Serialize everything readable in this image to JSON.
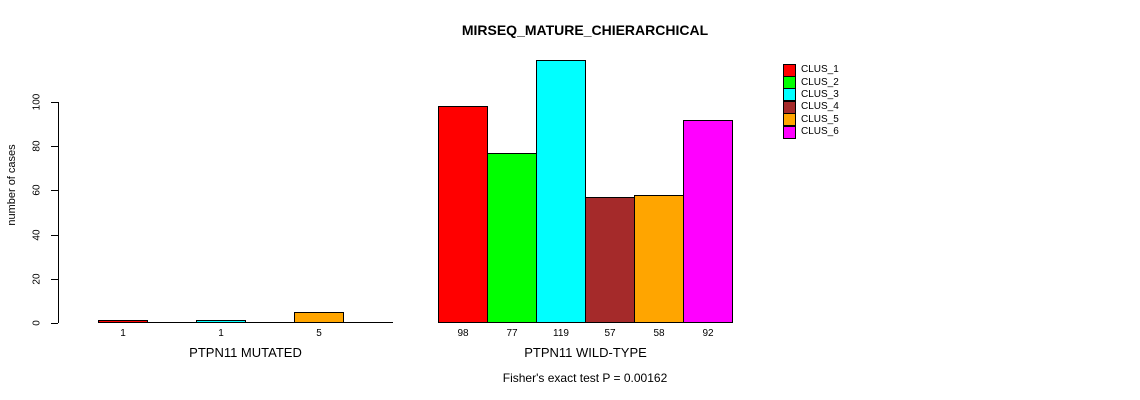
{
  "chart_data": {
    "type": "bar",
    "title": "MIRSEQ_MATURE_CHIERARCHICAL",
    "ylabel": "number of cases",
    "ylim": [
      0,
      100
    ],
    "yticks": [
      0,
      20,
      40,
      60,
      80,
      100
    ],
    "grid": false,
    "legend": {
      "position": "top-right",
      "entries": [
        {
          "label": "CLUS_1",
          "color": "#FF0000"
        },
        {
          "label": "CLUS_2",
          "color": "#00FF00"
        },
        {
          "label": "CLUS_3",
          "color": "#00FFFF"
        },
        {
          "label": "CLUS_4",
          "color": "#A52A2A"
        },
        {
          "label": "CLUS_5",
          "color": "#FFA500"
        },
        {
          "label": "CLUS_6",
          "color": "#FF00FF"
        }
      ]
    },
    "groups": [
      {
        "label": "PTPN11 MUTATED",
        "slots": 6,
        "bars": [
          {
            "cluster": "CLUS_1",
            "value": 1,
            "slot": 0,
            "color": "#FF0000"
          },
          {
            "cluster": "CLUS_3",
            "value": 1,
            "slot": 2,
            "color": "#00FFFF"
          },
          {
            "cluster": "CLUS_5",
            "value": 5,
            "slot": 4,
            "color": "#FFA500"
          }
        ]
      },
      {
        "label": "PTPN11 WILD-TYPE",
        "slots": 6,
        "bars": [
          {
            "cluster": "CLUS_1",
            "value": 98,
            "slot": 0,
            "color": "#FF0000"
          },
          {
            "cluster": "CLUS_2",
            "value": 77,
            "slot": 1,
            "color": "#00FF00"
          },
          {
            "cluster": "CLUS_3",
            "value": 119,
            "slot": 2,
            "color": "#00FFFF"
          },
          {
            "cluster": "CLUS_4",
            "value": 57,
            "slot": 3,
            "color": "#A52A2A"
          },
          {
            "cluster": "CLUS_5",
            "value": 58,
            "slot": 4,
            "color": "#FFA500"
          },
          {
            "cluster": "CLUS_6",
            "value": 92,
            "slot": 5,
            "color": "#FF00FF"
          }
        ]
      }
    ],
    "footnote": "Fisher's exact test P = 0.00162",
    "colors": {
      "axis": "#000000",
      "background": "#FFFFFF"
    }
  }
}
